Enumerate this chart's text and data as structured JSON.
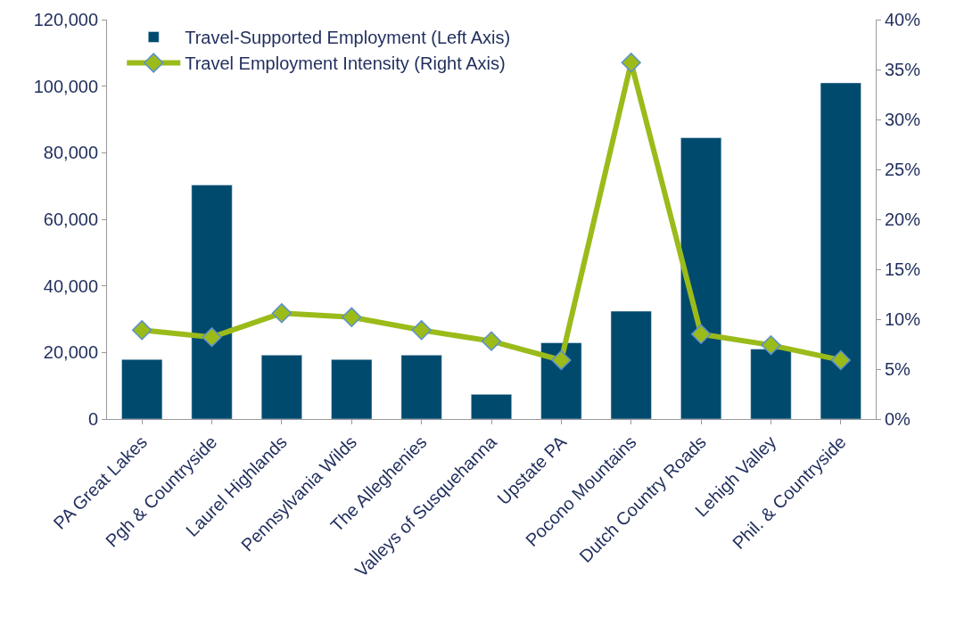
{
  "chart_data": {
    "type": "bar",
    "categories": [
      "PA Great Lakes",
      "Pgh & Countryside",
      "Laurel Highlands",
      "Pennsylvania Wilds",
      "The Alleghenies",
      "Valleys of Susquehanna",
      "Upstate PA",
      "Pocono Mountains",
      "Dutch Country Roads",
      "Lehigh Valley",
      "Phil. & Countryside"
    ],
    "series": [
      {
        "name": "Travel-Supported Employment (Left Axis)",
        "color": "#004a6e",
        "values": [
          17900,
          70300,
          19200,
          17900,
          19200,
          7400,
          22900,
          32400,
          84500,
          21000,
          101000
        ]
      },
      {
        "name": "Travel Employment Intensity (Right Axis)",
        "type": "line",
        "axis": "y2",
        "color": "#9bbb1a",
        "marker": "diamond",
        "values": [
          8.9,
          8.2,
          10.6,
          10.2,
          8.9,
          7.8,
          5.9,
          35.7,
          8.5,
          7.4,
          5.9
        ]
      }
    ],
    "ylim": [
      0,
      120000
    ],
    "yticks": [
      0,
      {
        "value": 20000,
        "label": "20,000"
      },
      {
        "value": 40000,
        "label": "40,000"
      },
      {
        "value": 60000,
        "label": "60,000"
      },
      {
        "value": 80000,
        "label": "80,000"
      },
      {
        "value": 100000,
        "label": "100,000"
      },
      {
        "value": 120000,
        "label": "120,000"
      }
    ],
    "y2lim": [
      0,
      40
    ],
    "y2ticks": [
      {
        "value": 0,
        "label": "0%"
      },
      {
        "value": 5,
        "label": "5%"
      },
      {
        "value": 10,
        "label": "10%"
      },
      {
        "value": 15,
        "label": "15%"
      },
      {
        "value": 20,
        "label": "20%"
      },
      {
        "value": 25,
        "label": "25%"
      },
      {
        "value": 30,
        "label": "30%"
      },
      {
        "value": 35,
        "label": "35%"
      },
      {
        "value": 40,
        "label": "40%"
      }
    ],
    "legend": "top left"
  }
}
